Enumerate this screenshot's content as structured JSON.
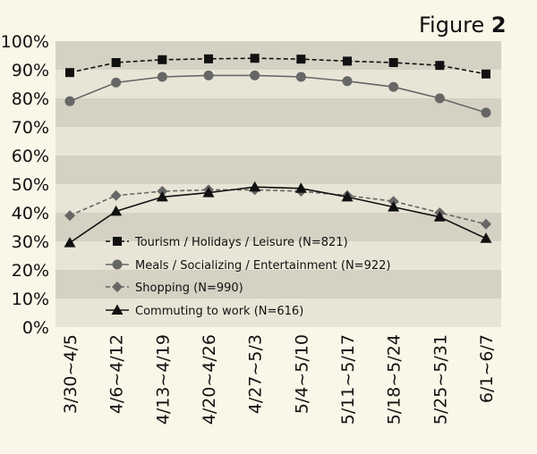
{
  "figure_label": {
    "text": "Figure",
    "number": "2"
  },
  "chart_data": {
    "type": "line",
    "categories": [
      "3/30~4/5",
      "4/6~4/12",
      "4/13~4/19",
      "4/20~4/26",
      "4/27~5/3",
      "5/4~5/10",
      "5/11~5/17",
      "5/18~5/24",
      "5/25~5/31",
      "6/1~6/7"
    ],
    "ylim": [
      0,
      100
    ],
    "yticks": [
      "0%",
      "10%",
      "20%",
      "30%",
      "40%",
      "50%",
      "60%",
      "70%",
      "80%",
      "90%",
      "100%"
    ],
    "grid": "alternating horizontal bands",
    "legend_placement": "lower-left inside plot",
    "series": [
      {
        "name": "Tourism / Holidays / Leisure (N=821)",
        "marker": "square",
        "line": "dashed",
        "color": "#111111",
        "values": [
          89,
          92.5,
          93.5,
          93.8,
          94,
          93.7,
          93,
          92.5,
          91.5,
          88.5
        ]
      },
      {
        "name": "Meals / Socializing / Entertainment (N=922)",
        "marker": "circle",
        "line": "solid",
        "color": "#666666",
        "values": [
          79,
          85.5,
          87.5,
          88,
          88,
          87.5,
          86,
          84,
          80,
          75
        ]
      },
      {
        "name": "Shopping (N=990)",
        "marker": "diamond",
        "line": "dashed",
        "color": "#666666",
        "values": [
          39,
          46,
          47.5,
          48,
          48,
          47.5,
          46,
          44,
          40,
          36
        ]
      },
      {
        "name": "Commuting to work (N=616)",
        "marker": "triangle",
        "line": "solid",
        "color": "#111111",
        "values": [
          29.5,
          40.5,
          45.5,
          47,
          49,
          48.5,
          45.5,
          42,
          38.5,
          31
        ]
      }
    ]
  }
}
